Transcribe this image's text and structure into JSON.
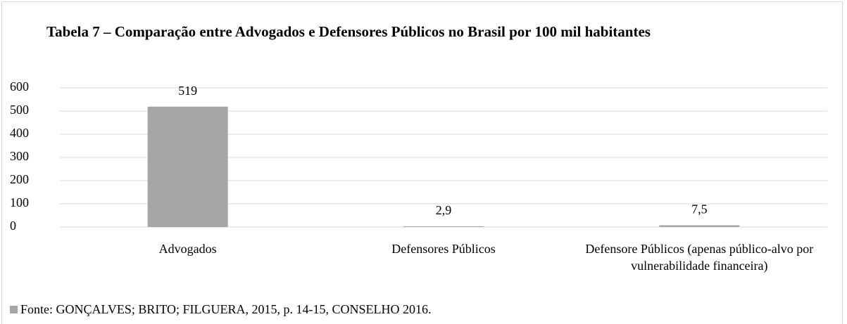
{
  "chart_data": {
    "type": "bar",
    "title": "Tabela 7 – Comparação entre Advogados e Defensores Públicos no Brasil por 100 mil habitantes",
    "categories": [
      "Advogados",
      "Defensores Públicos",
      "Defensore Públicos (apenas público-alvo por vulnerabilidade financeira)"
    ],
    "series": [
      {
        "name": "Fonte: GONÇALVES; BRITO; FILGUERA, 2015, p. 14-15, CONSELHO 2016.",
        "color": "#a5a5a5",
        "values": [
          519,
          2.9,
          7.5
        ],
        "value_labels": [
          "519",
          "2,9",
          "7,5"
        ]
      }
    ],
    "ylim": [
      0,
      600
    ],
    "yticks": [
      0,
      100,
      200,
      300,
      400,
      500,
      600
    ],
    "grid": true,
    "legend": "bottom-left"
  }
}
